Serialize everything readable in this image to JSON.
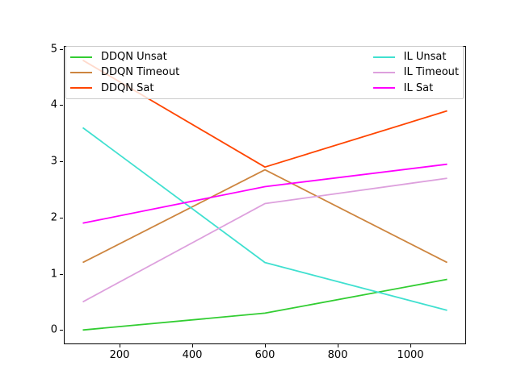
{
  "figure": {
    "background": "#ffffff",
    "title": ""
  },
  "chart_data": {
    "type": "line",
    "title": "",
    "xlabel": "",
    "ylabel": "",
    "x": [
      100,
      600,
      1100
    ],
    "series": [
      {
        "name": "DDQN Unsat",
        "color": "#32cd32",
        "values": [
          0.0,
          0.3,
          0.9
        ]
      },
      {
        "name": "DDQN Timeout",
        "color": "#cd853f",
        "values": [
          1.2,
          2.85,
          1.2
        ]
      },
      {
        "name": "DDQN Sat",
        "color": "#ff4500",
        "values": [
          4.8,
          2.9,
          3.9
        ]
      },
      {
        "name": "IL Unsat",
        "color": "#40e0d0",
        "values": [
          3.6,
          1.2,
          0.35
        ]
      },
      {
        "name": "IL Timeout",
        "color": "#dda0dd",
        "values": [
          0.5,
          2.25,
          2.7
        ]
      },
      {
        "name": "IL Sat",
        "color": "#ff00ff",
        "values": [
          1.9,
          2.55,
          2.95
        ]
      }
    ],
    "xlim": [
      50,
      1150
    ],
    "ylim": [
      -0.24,
      5.04
    ],
    "xticks": [
      200,
      400,
      600,
      800,
      1000
    ],
    "yticks": [
      0,
      1,
      2,
      3,
      4,
      5
    ],
    "grid": false,
    "legend": {
      "position": "top, expanded full axes width, 2 columns, semi-transparent white",
      "border_color": "#cccccc",
      "columns": [
        [
          "DDQN Unsat",
          "DDQN Timeout",
          "DDQN Sat"
        ],
        [
          "IL Unsat",
          "IL Timeout",
          "IL Sat"
        ]
      ]
    }
  }
}
